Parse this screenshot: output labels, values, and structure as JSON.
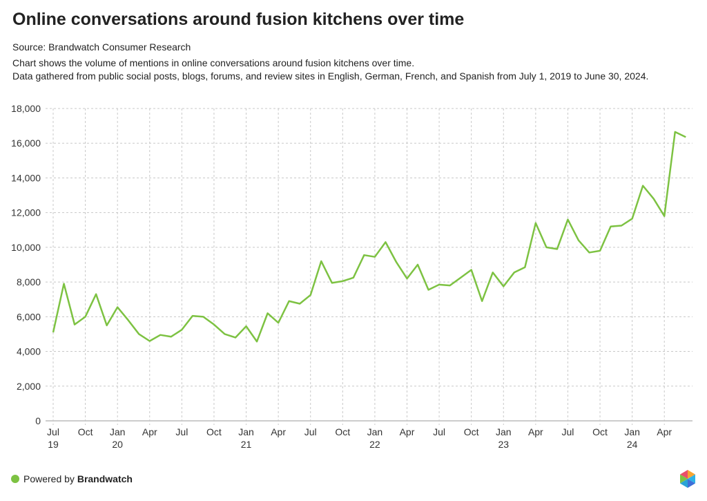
{
  "header": {
    "title": "Online conversations around fusion kitchens over time",
    "source": "Source: Brandwatch Consumer Research",
    "description_1": "Chart shows the volume of mentions in online conversations around fusion kitchens over time.",
    "description_2": "Data gathered from public social posts, blogs, forums, and review sites in English, German, French, and Spanish from July 1, 2019 to June 30, 2024."
  },
  "footer": {
    "powered_by": "Powered by ",
    "brand": "Brandwatch"
  },
  "colors": {
    "line": "#7dc242",
    "grid": "#c8c8c8"
  },
  "chart_data": {
    "type": "line",
    "title": "Online conversations around fusion kitchens over time",
    "xlabel": "",
    "ylabel": "",
    "ylim": [
      0,
      18000
    ],
    "yticks": [
      "0",
      "2,000",
      "4,000",
      "6,000",
      "8,000",
      "10,000",
      "12,000",
      "14,000",
      "16,000",
      "18,000"
    ],
    "xticks": [
      {
        "index": 0,
        "label": "Jul",
        "sub": "19"
      },
      {
        "index": 3,
        "label": "Oct",
        "sub": ""
      },
      {
        "index": 6,
        "label": "Jan",
        "sub": "20"
      },
      {
        "index": 9,
        "label": "Apr",
        "sub": ""
      },
      {
        "index": 12,
        "label": "Jul",
        "sub": ""
      },
      {
        "index": 15,
        "label": "Oct",
        "sub": ""
      },
      {
        "index": 18,
        "label": "Jan",
        "sub": "21"
      },
      {
        "index": 21,
        "label": "Apr",
        "sub": ""
      },
      {
        "index": 24,
        "label": "Jul",
        "sub": ""
      },
      {
        "index": 27,
        "label": "Oct",
        "sub": ""
      },
      {
        "index": 30,
        "label": "Jan",
        "sub": "22"
      },
      {
        "index": 33,
        "label": "Apr",
        "sub": ""
      },
      {
        "index": 36,
        "label": "Jul",
        "sub": ""
      },
      {
        "index": 39,
        "label": "Oct",
        "sub": ""
      },
      {
        "index": 42,
        "label": "Jan",
        "sub": "23"
      },
      {
        "index": 45,
        "label": "Apr",
        "sub": ""
      },
      {
        "index": 48,
        "label": "Jul",
        "sub": ""
      },
      {
        "index": 51,
        "label": "Oct",
        "sub": ""
      },
      {
        "index": 54,
        "label": "Jan",
        "sub": "24"
      },
      {
        "index": 57,
        "label": "Apr",
        "sub": ""
      }
    ],
    "grid": true,
    "series": [
      {
        "name": "Mentions",
        "values": [
          5100,
          7900,
          5550,
          6000,
          7300,
          5500,
          6550,
          5800,
          5000,
          4600,
          4950,
          4850,
          5250,
          6050,
          6000,
          5550,
          5000,
          4800,
          5450,
          4570,
          6200,
          5650,
          6900,
          6750,
          7250,
          9200,
          7950,
          8050,
          8250,
          9550,
          9450,
          10300,
          9150,
          8200,
          9000,
          7550,
          7850,
          7800,
          8250,
          8700,
          6900,
          8550,
          7750,
          8550,
          8850,
          11400,
          10000,
          9900,
          11600,
          10400,
          9700,
          9800,
          11200,
          11250,
          11650,
          13550,
          12800,
          11800,
          16650,
          16350
        ]
      }
    ]
  }
}
